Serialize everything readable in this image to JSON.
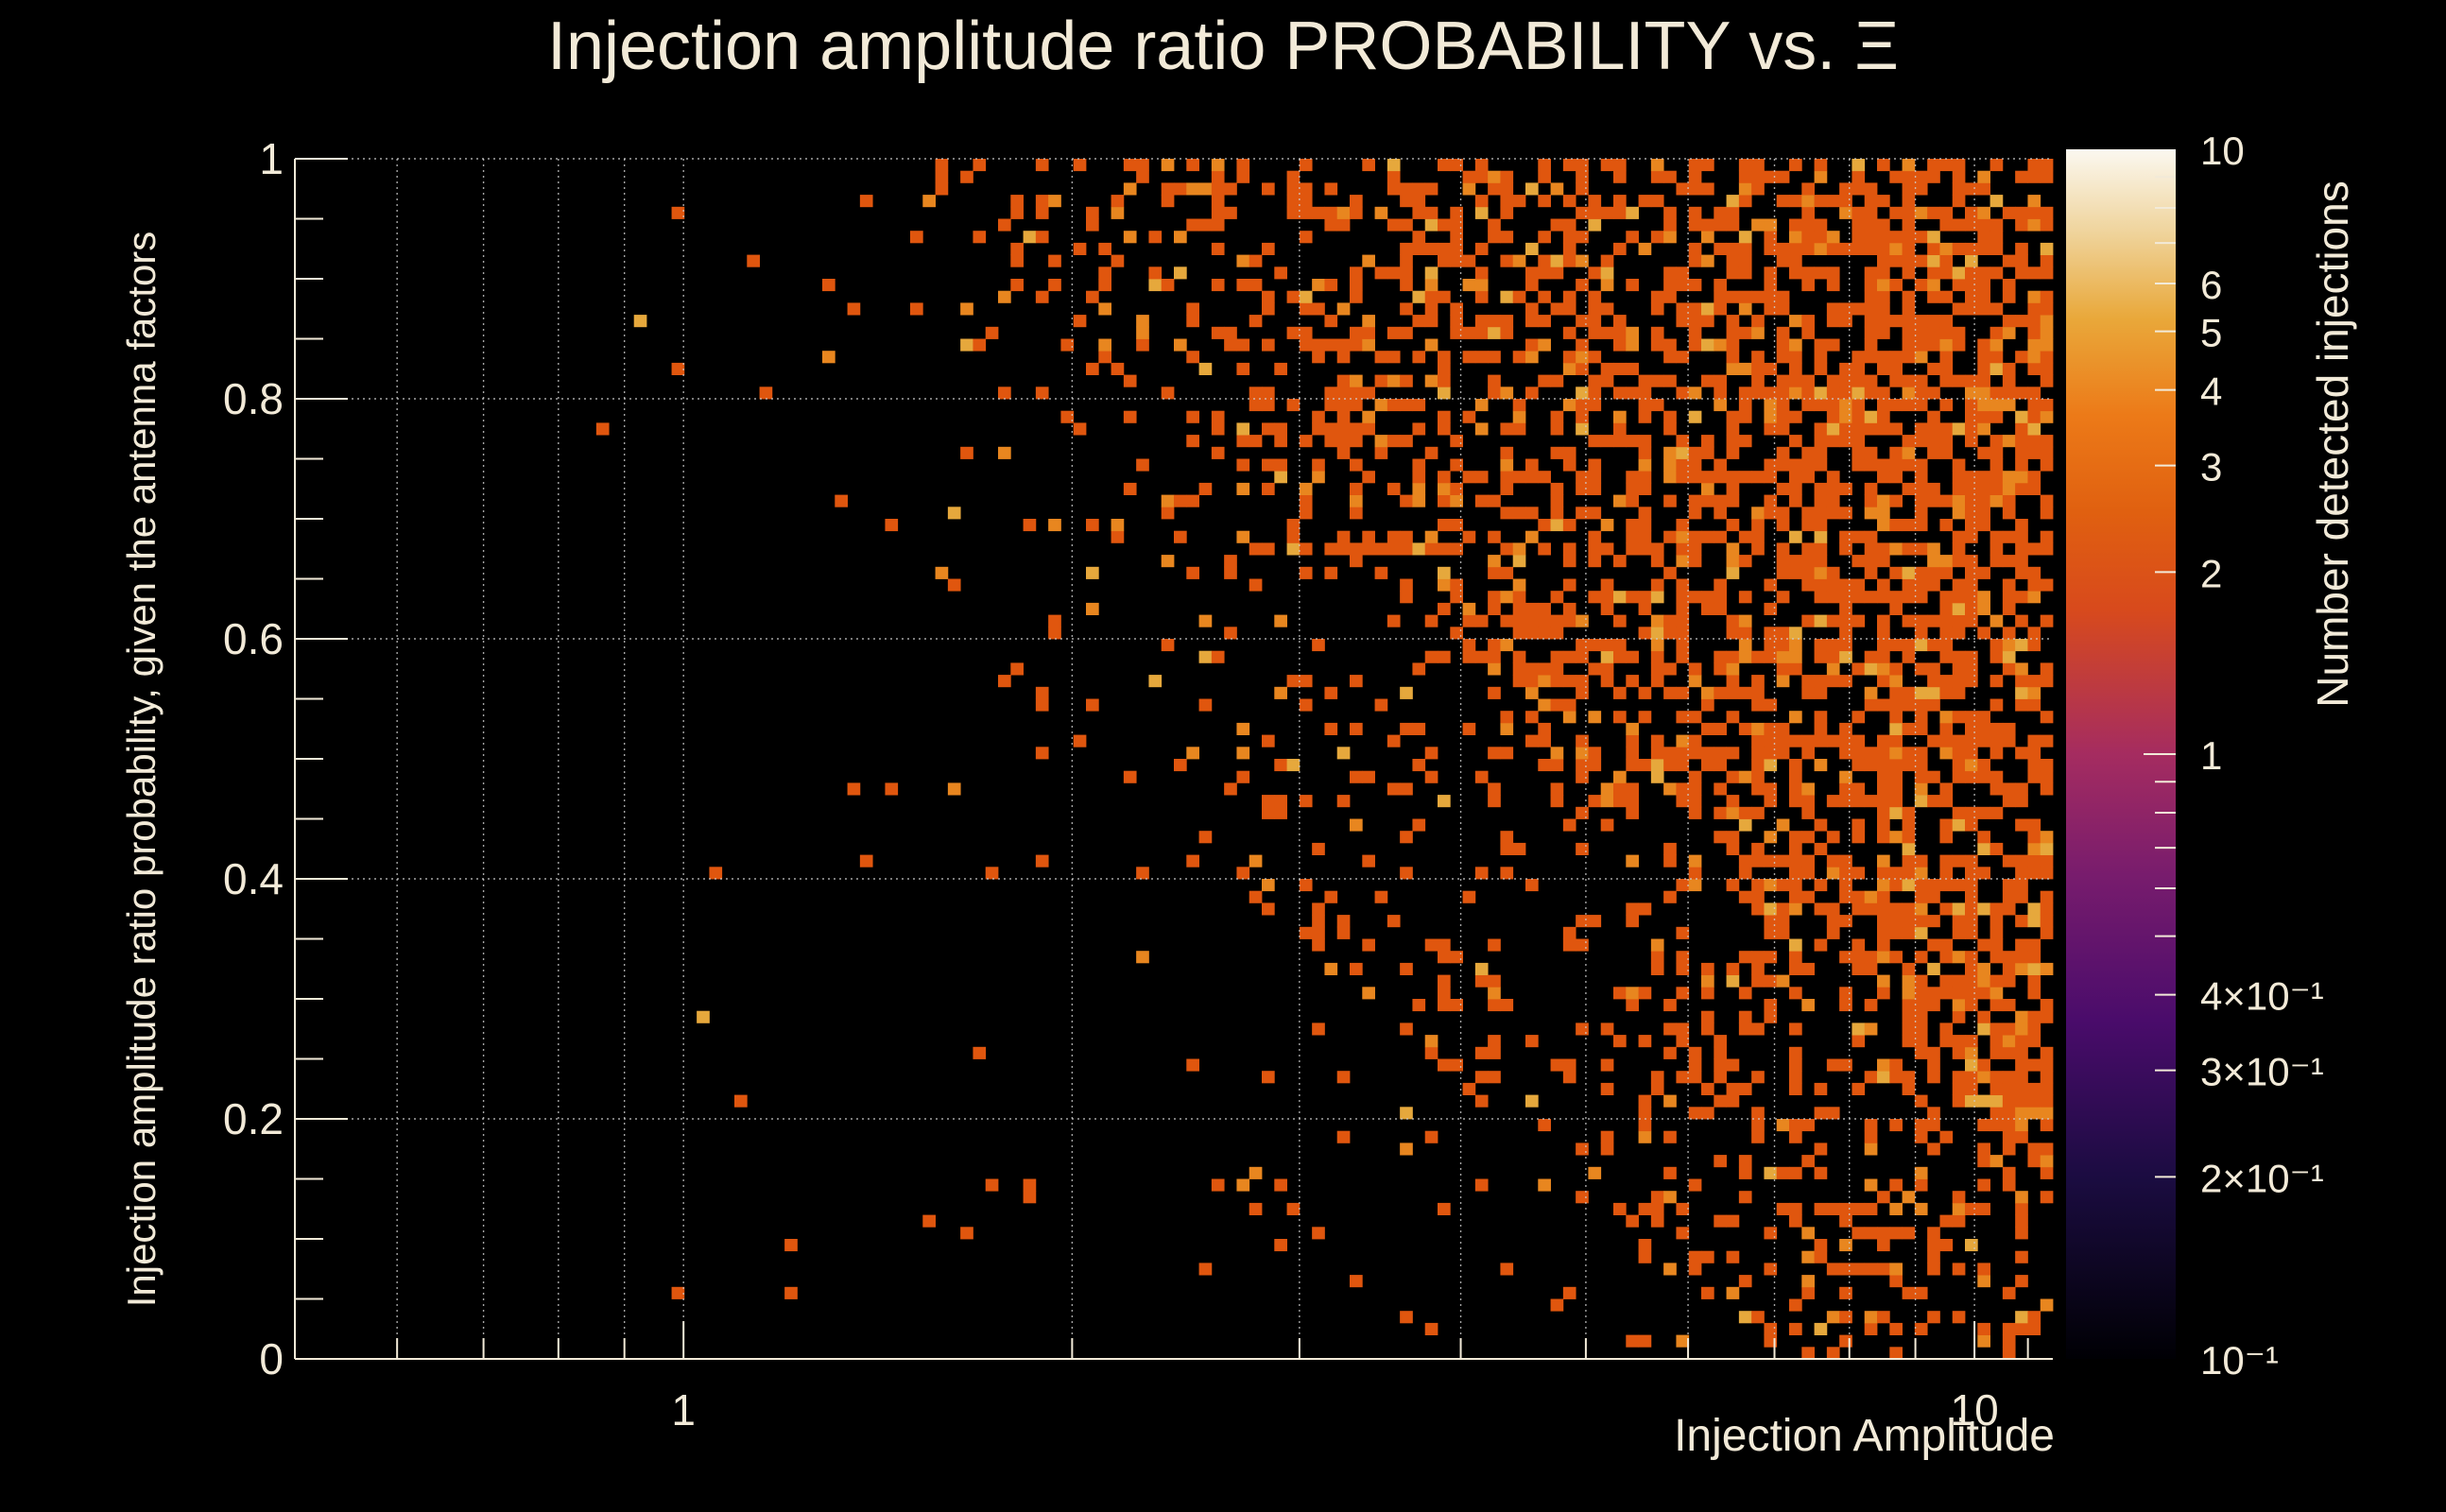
{
  "chart_data": {
    "type": "heatmap",
    "title": "Injection amplitude ratio PROBABILITY vs. Ξ",
    "xlabel": "Injection Amplitude",
    "ylabel": "Injection amplitude ratio probability, given the antenna factors",
    "zlabel": "Number detected injections",
    "x_scale": "log",
    "xlim": [
      0.5,
      11.5
    ],
    "ylim": [
      0,
      1
    ],
    "z_scale": "log",
    "zlim": [
      0.1,
      10
    ],
    "grid": true,
    "x_tick_labels": [
      "1",
      "10"
    ],
    "y_tick_labels": [
      "0",
      "0.2",
      "0.4",
      "0.6",
      "0.8",
      "1"
    ],
    "z_tick_labels": [
      "10",
      "6",
      "5",
      "4",
      "3",
      "2",
      "1",
      "4×10⁻¹",
      "3×10⁻¹",
      "2×10⁻¹",
      "10⁻¹"
    ],
    "colormap": [
      "#000004",
      "#1b0c41",
      "#4a0c6b",
      "#781c6d",
      "#a52c60",
      "#cf4446",
      "#e06010",
      "#ed6925",
      "#fb9b06",
      "#f7d13d",
      "#fcffa4",
      "#ffffff"
    ],
    "cells_note_colors": {
      "one": "#e0560e",
      "two": "#e8861f",
      "three": "#e6a83c"
    }
  }
}
